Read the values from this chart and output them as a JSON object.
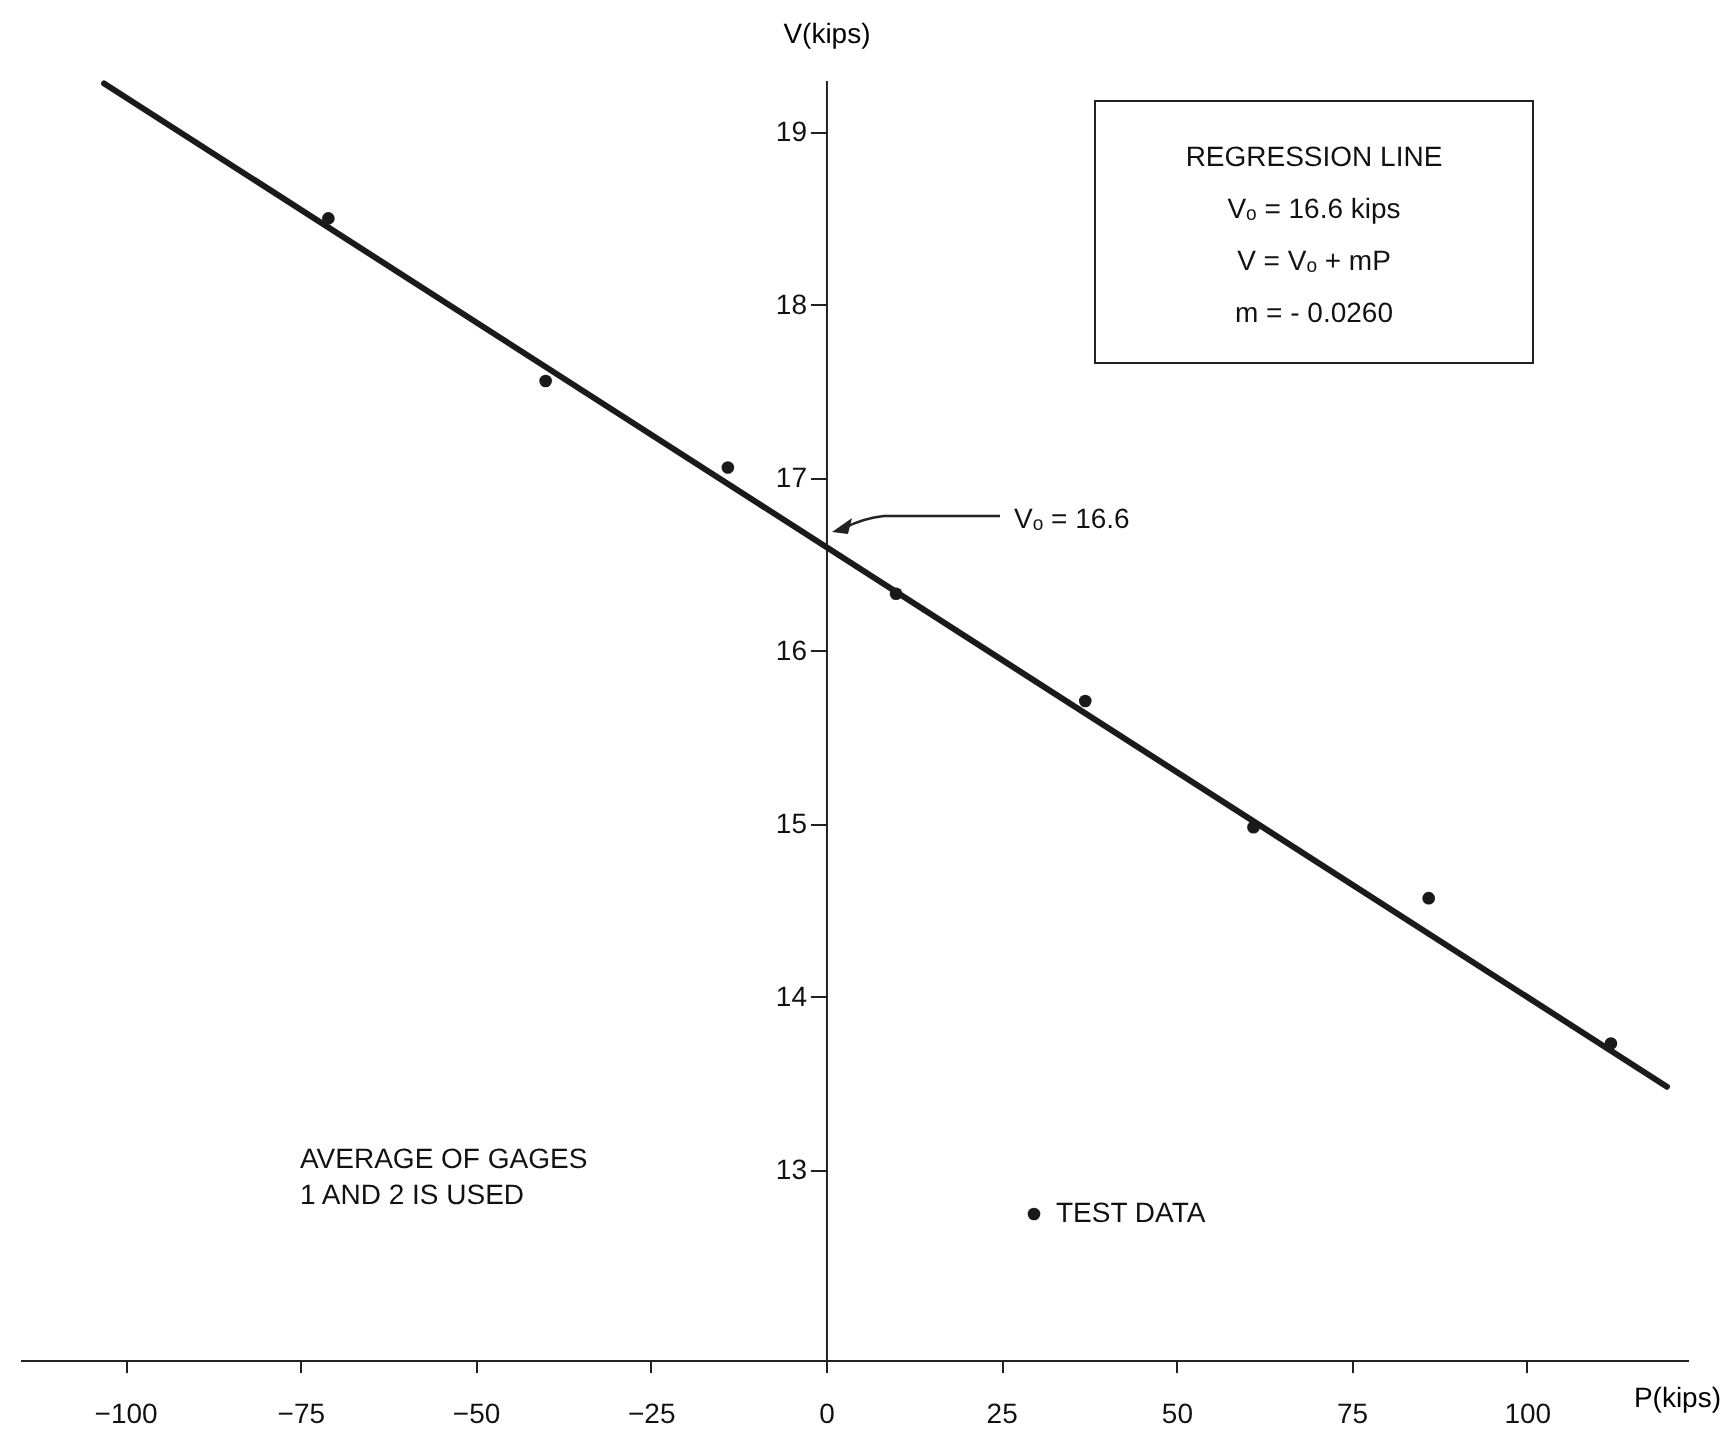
{
  "chart_data": {
    "type": "scatter",
    "xlabel": "P(kips)",
    "ylabel": "V(kips)",
    "xlim": [
      -115,
      123
    ],
    "ylim": [
      11.9,
      19.3
    ],
    "xticks": [
      -100,
      -75,
      -50,
      -25,
      0,
      25,
      50,
      75,
      100
    ],
    "yticks": [
      13,
      14,
      15,
      16,
      17,
      18,
      19
    ],
    "grid": false,
    "legend": "bottom right",
    "marker": "circle",
    "line_style": "solid",
    "series": [
      {
        "name": "TEST DATA",
        "color": "#1a1a1a",
        "x": [
          -71,
          -40,
          -14,
          10,
          37,
          61,
          86,
          112
        ],
        "values": [
          18.5,
          17.56,
          17.06,
          16.33,
          15.71,
          14.98,
          14.57,
          13.73
        ]
      },
      {
        "type": "line",
        "marker": "none",
        "color": "#1a1a1a",
        "x": [
          -103,
          120
        ],
        "values": [
          19.28,
          13.48
        ]
      }
    ],
    "annotations": [
      "REGRESSION LINE",
      "Vₒ = 16.6 kips",
      "V = Vₒ + mP",
      "m = - 0.0260",
      "AVERAGE OF GAGES\n1 AND 2  IS USED",
      "Vₒ = 16.6"
    ]
  }
}
